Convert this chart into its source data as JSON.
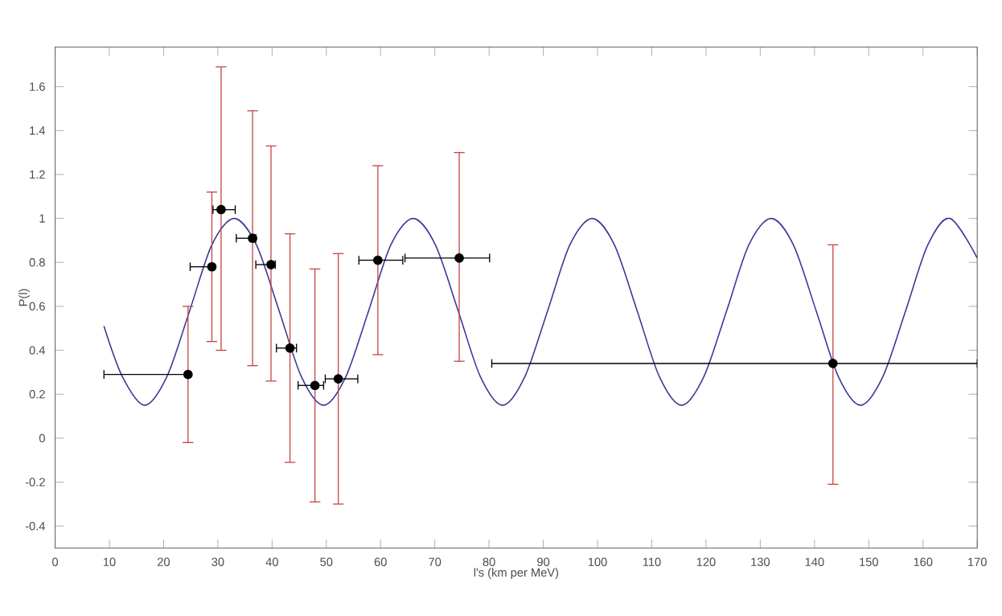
{
  "chart_data": {
    "type": "scatter",
    "xlabel": "l's (km per MeV)",
    "ylabel": "P(l)",
    "xlim": [
      0,
      170
    ],
    "ylim": [
      -0.5,
      1.78
    ],
    "xticks": [
      0,
      10,
      20,
      30,
      40,
      50,
      60,
      70,
      80,
      90,
      100,
      110,
      120,
      130,
      140,
      150,
      160,
      170
    ],
    "yticks": [
      -0.4,
      -0.2,
      0,
      0.2,
      0.4,
      0.6,
      0.8,
      1,
      1.2,
      1.4,
      1.6
    ],
    "grid": false,
    "series": [
      {
        "type": "line",
        "color": "#3a3a9a",
        "marker": "none",
        "line_style": "solid",
        "x": [
          9,
          12.4,
          16.5,
          20.6,
          24.8,
          28.9,
          33,
          37.1,
          41.3,
          45.4,
          49.5,
          53.6,
          57.8,
          61.9,
          66,
          70.1,
          74.3,
          78.4,
          82.5,
          86.6,
          90.8,
          94.9,
          99,
          103.1,
          107.3,
          111.4,
          115.5,
          119.6,
          123.8,
          127.9,
          132,
          136.1,
          140.3,
          144.4,
          148.5,
          152.6,
          156.8,
          160.9,
          165,
          170
        ],
        "values": [
          0.51,
          0.28,
          0.15,
          0.28,
          0.58,
          0.88,
          1,
          0.88,
          0.58,
          0.28,
          0.15,
          0.28,
          0.58,
          0.88,
          1,
          0.88,
          0.58,
          0.28,
          0.15,
          0.28,
          0.58,
          0.88,
          1,
          0.88,
          0.58,
          0.28,
          0.15,
          0.28,
          0.58,
          0.88,
          1,
          0.88,
          0.58,
          0.28,
          0.15,
          0.28,
          0.58,
          0.88,
          1,
          0.82
        ]
      },
      {
        "color": "#000000",
        "marker": "circle",
        "x": [
          24.5,
          28.9,
          30.6,
          36.4,
          39.8,
          43.3,
          47.9,
          52.2,
          59.5,
          74.5,
          143.4
        ],
        "values": [
          0.29,
          0.78,
          1.04,
          0.91,
          0.79,
          0.41,
          0.24,
          0.27,
          0.81,
          0.82,
          0.34
        ],
        "errors": [
          [
            -0.02,
            0.6
          ],
          [
            0.44,
            1.12
          ],
          [
            0.4,
            1.69
          ],
          [
            0.33,
            1.49
          ],
          [
            0.26,
            1.33
          ],
          [
            -0.11,
            0.93
          ],
          [
            -0.29,
            0.77
          ],
          [
            -0.3,
            0.84
          ],
          [
            0.38,
            1.24
          ],
          [
            0.35,
            1.3
          ],
          [
            -0.21,
            0.88
          ]
        ],
        "xerrors": [
          [
            9,
            24.5
          ],
          [
            24.9,
            28.9
          ],
          [
            29.1,
            33.2
          ],
          [
            33.4,
            37
          ],
          [
            37,
            40.6
          ],
          [
            40.8,
            44.5
          ],
          [
            44.8,
            49.5
          ],
          [
            49.8,
            55.8
          ],
          [
            56,
            64.1
          ],
          [
            64.5,
            80.1
          ],
          [
            80.5,
            170
          ]
        ]
      }
    ]
  }
}
